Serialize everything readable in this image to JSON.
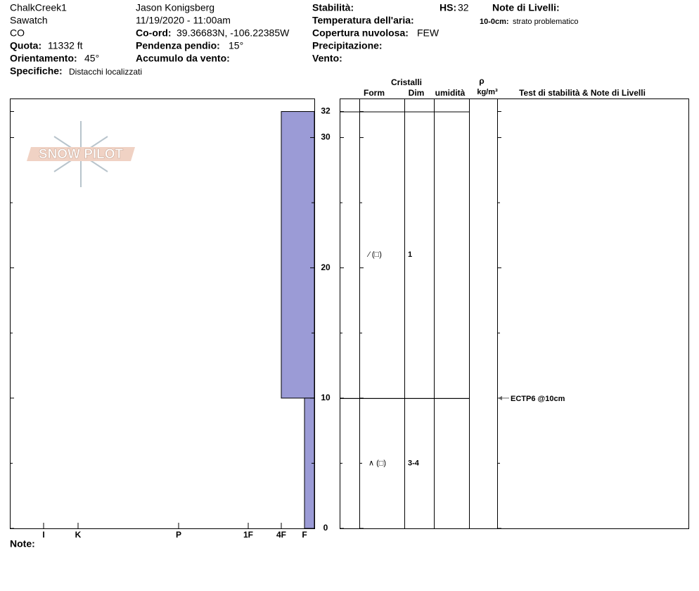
{
  "location": {
    "name": "ChalkCreek1",
    "range": "Sawatch",
    "state": "CO"
  },
  "elevation": {
    "label": "Quota:",
    "value": "11332 ft"
  },
  "aspect": {
    "label": "Orientamento:",
    "value": "45°"
  },
  "specifics": {
    "label": "Specifiche:",
    "value": "Distacchi localizzati"
  },
  "observer": "Jason Konigsberg",
  "datetime": "11/19/2020 - 11:00am",
  "coords": {
    "label": "Co-ord:",
    "value": "39.36683N, -106.22385W"
  },
  "slope": {
    "label": "Pendenza pendio:",
    "value": "15°"
  },
  "wind_loading": {
    "label": "Accumulo da vento:"
  },
  "stability": {
    "label": "Stabilità:"
  },
  "hs": {
    "label": "HS:",
    "value": 32
  },
  "air_temp": {
    "label": "Temperatura dell'aria:"
  },
  "cloud": {
    "label": "Copertura nuvolosa:",
    "value": "FEW"
  },
  "precip": {
    "label": "Precipitazione:"
  },
  "wind": {
    "label": "Vento:"
  },
  "layer_notes": {
    "label": "Note di Livelli:",
    "items": [
      {
        "label": "10-0cm:",
        "text": "strato problematico"
      }
    ]
  },
  "notes_label": "Note:",
  "logo": "SNOW PILOT",
  "chart_data": {
    "type": "snow-profile",
    "ylim": [
      0,
      33
    ],
    "yticks": [
      0,
      10,
      20,
      30,
      32
    ],
    "minor_yticks": [
      5,
      15,
      25
    ],
    "hardness_categories": [
      "I",
      "K",
      "P",
      "1F",
      "4F",
      "F"
    ],
    "color": "#9b9bd6",
    "columns": {
      "crystals": "Cristalli",
      "form": "Form",
      "size": "Dim",
      "moisture": "umidità",
      "density": "ρ",
      "density_unit": "kg/m³",
      "notes": "Test di stabilità & Note di Livelli"
    },
    "layers": [
      {
        "top": 32,
        "bottom": 10,
        "hardness": "4F",
        "form": "⁄ (□)",
        "size": "1"
      },
      {
        "top": 10,
        "bottom": 0,
        "hardness": "F",
        "form": "∧ (□)",
        "size": "3-4"
      }
    ],
    "tests": [
      {
        "depth": 10,
        "label": "ECTP6 @10cm"
      }
    ]
  }
}
